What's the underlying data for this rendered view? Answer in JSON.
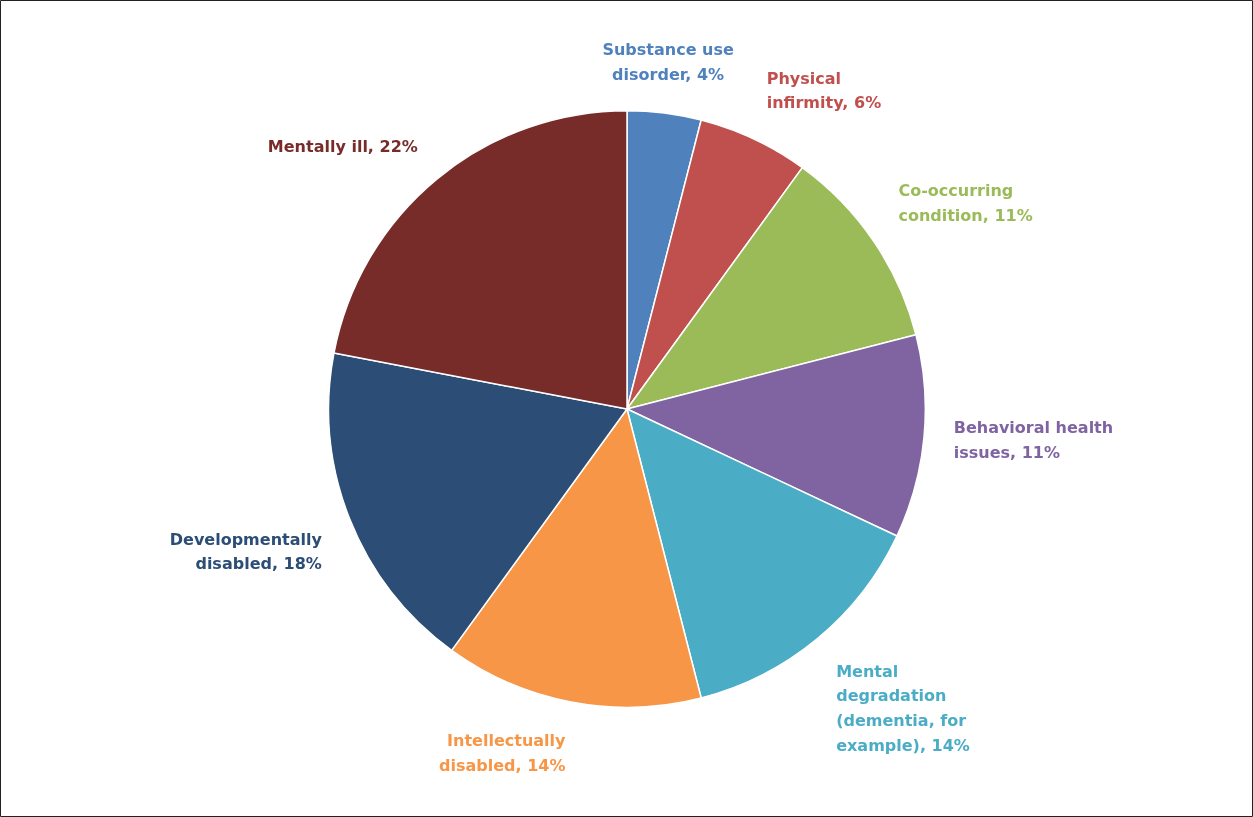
{
  "chart_data": {
    "type": "pie",
    "categories": [
      "Substance use disorder",
      "Physical infirmity",
      "Co-occurring condition",
      "Behavioral health issues",
      "Mental degradation (dementia, for example)",
      "Intellectually disabled",
      "Developmentally disabled",
      "Mentally ill"
    ],
    "values": [
      4,
      6,
      11,
      11,
      14,
      14,
      18,
      22
    ],
    "value_labels": [
      "4%",
      "6%",
      "11%",
      "11%",
      "14%",
      "14%",
      "18%",
      "22%"
    ],
    "colors": [
      "#4f81bd",
      "#c0504d",
      "#9bbb59",
      "#8064a2",
      "#4bacc6",
      "#f79646",
      "#2c4d75",
      "#772c2a"
    ],
    "data_labels": true
  }
}
